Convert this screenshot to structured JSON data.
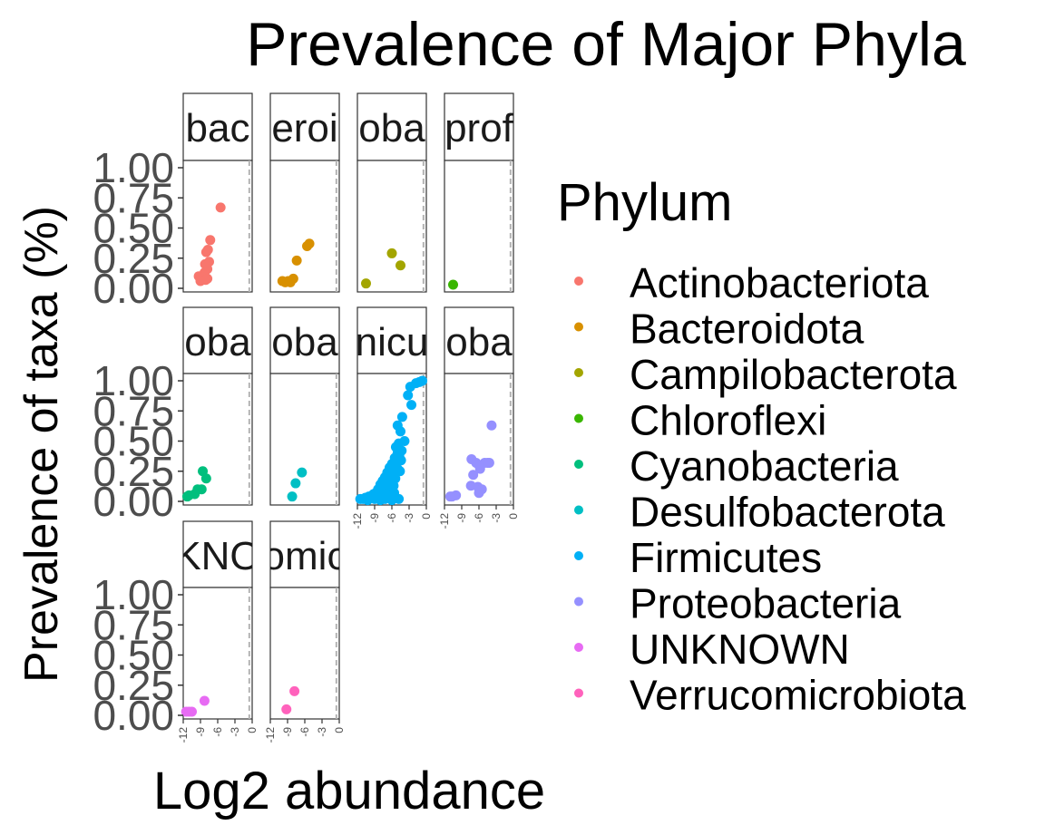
{
  "chart_data": {
    "type": "scatter",
    "title": "Prevalence of Major Phyla",
    "xlabel": "Log2 abundance",
    "ylabel": "Prevalence of taxa (%)",
    "xlim": [
      -12,
      0
    ],
    "ylim": [
      0,
      1
    ],
    "x_ticks": [
      "-12",
      "-9",
      "-6",
      "-3",
      "0"
    ],
    "y_ticks": [
      "0.00",
      "0.25",
      "0.50",
      "0.75",
      "1.00"
    ],
    "reference_line_x": -0.5,
    "legend": {
      "title": "Phylum",
      "position": "right"
    },
    "grid": false,
    "facets": [
      {
        "strip": "bac",
        "name": "Actinobacteriota",
        "color": "#F8766D",
        "points": [
          [
            -5.5,
            0.67
          ],
          [
            -7.3,
            0.4
          ],
          [
            -7.7,
            0.32
          ],
          [
            -8.0,
            0.3
          ],
          [
            -7.5,
            0.22
          ],
          [
            -8.2,
            0.2
          ],
          [
            -7.8,
            0.16
          ],
          [
            -8.3,
            0.13
          ],
          [
            -9.3,
            0.1
          ],
          [
            -8.6,
            0.09
          ],
          [
            -7.8,
            0.08
          ],
          [
            -8.1,
            0.07
          ],
          [
            -9.0,
            0.06
          ]
        ]
      },
      {
        "strip": "eroi",
        "name": "Bacteroidota",
        "color": "#D89000",
        "points": [
          [
            -5.2,
            0.37
          ],
          [
            -5.6,
            0.35
          ],
          [
            -7.4,
            0.23
          ],
          [
            -8.0,
            0.08
          ],
          [
            -8.9,
            0.06
          ],
          [
            -9.9,
            0.06
          ],
          [
            -9.4,
            0.05
          ],
          [
            -8.5,
            0.05
          ]
        ]
      },
      {
        "strip": "oba",
        "name": "Campilobacterota",
        "color": "#A3A500",
        "points": [
          [
            -6.0,
            0.29
          ],
          [
            -4.5,
            0.19
          ],
          [
            -10.5,
            0.04
          ]
        ]
      },
      {
        "strip": "prof",
        "name": "Chloroflexi",
        "color": "#39B600",
        "points": [
          [
            -10.5,
            0.03
          ]
        ]
      },
      {
        "strip": "oba",
        "name": "Cyanobacteria",
        "color": "#00BF7D",
        "points": [
          [
            -8.6,
            0.25
          ],
          [
            -8.0,
            0.19
          ],
          [
            -8.8,
            0.1
          ],
          [
            -9.5,
            0.1
          ],
          [
            -10.0,
            0.06
          ],
          [
            -11.3,
            0.04
          ],
          [
            -11.0,
            0.05
          ]
        ]
      },
      {
        "strip": "oba",
        "name": "Desulfobacterota",
        "color": "#00BFC4",
        "points": [
          [
            -6.5,
            0.24
          ],
          [
            -7.6,
            0.15
          ],
          [
            -8.2,
            0.04
          ]
        ]
      },
      {
        "strip": "nicu",
        "name": "Firmicutes",
        "color": "#00B0F6",
        "points": [
          [
            -0.7,
            1.0
          ],
          [
            -1.2,
            0.99
          ],
          [
            -1.8,
            0.98
          ],
          [
            -2.8,
            0.95
          ],
          [
            -3.2,
            0.88
          ],
          [
            -2.6,
            0.8
          ],
          [
            -4.2,
            0.7
          ],
          [
            -5.0,
            0.63
          ],
          [
            -4.5,
            0.58
          ],
          [
            -3.8,
            0.5
          ],
          [
            -4.8,
            0.48
          ],
          [
            -5.3,
            0.45
          ],
          [
            -4.3,
            0.42
          ],
          [
            -5.0,
            0.4
          ],
          [
            -4.7,
            0.37
          ],
          [
            -5.5,
            0.36
          ],
          [
            -4.4,
            0.34
          ],
          [
            -5.2,
            0.33
          ],
          [
            -6.0,
            0.31
          ],
          [
            -5.6,
            0.3
          ],
          [
            -6.4,
            0.28
          ],
          [
            -5.0,
            0.27
          ],
          [
            -4.6,
            0.25
          ],
          [
            -6.8,
            0.24
          ],
          [
            -5.9,
            0.23
          ],
          [
            -6.3,
            0.21
          ],
          [
            -7.2,
            0.2
          ],
          [
            -5.4,
            0.19
          ],
          [
            -6.6,
            0.18
          ],
          [
            -7.6,
            0.17
          ],
          [
            -6.1,
            0.16
          ],
          [
            -7.0,
            0.15
          ],
          [
            -8.0,
            0.14
          ],
          [
            -5.7,
            0.13
          ],
          [
            -6.8,
            0.12
          ],
          [
            -7.4,
            0.11
          ],
          [
            -8.4,
            0.1
          ],
          [
            -6.2,
            0.09
          ],
          [
            -7.8,
            0.08
          ],
          [
            -8.8,
            0.07
          ],
          [
            -5.6,
            0.07
          ],
          [
            -7.0,
            0.06
          ],
          [
            -9.2,
            0.06
          ],
          [
            -6.5,
            0.05
          ],
          [
            -8.2,
            0.05
          ],
          [
            -10.0,
            0.04
          ],
          [
            -5.8,
            0.04
          ],
          [
            -7.6,
            0.04
          ],
          [
            -9.6,
            0.03
          ],
          [
            -10.6,
            0.03
          ],
          [
            -6.2,
            0.03
          ],
          [
            -8.6,
            0.03
          ],
          [
            -11.0,
            0.02
          ],
          [
            -4.8,
            0.02
          ],
          [
            -7.2,
            0.02
          ],
          [
            -9.0,
            0.02
          ],
          [
            -11.5,
            0.02
          ],
          [
            -6.0,
            0.01
          ],
          [
            -8.0,
            0.01
          ],
          [
            -10.2,
            0.01
          ]
        ]
      },
      {
        "strip": "oba",
        "name": "Proteobacteria",
        "color": "#9590FF",
        "points": [
          [
            -3.8,
            0.63
          ],
          [
            -7.3,
            0.35
          ],
          [
            -6.5,
            0.32
          ],
          [
            -4.5,
            0.32
          ],
          [
            -5.0,
            0.32
          ],
          [
            -4.2,
            0.32
          ],
          [
            -6.0,
            0.3
          ],
          [
            -5.8,
            0.27
          ],
          [
            -7.0,
            0.22
          ],
          [
            -7.4,
            0.13
          ],
          [
            -6.2,
            0.12
          ],
          [
            -5.5,
            0.1
          ],
          [
            -6.0,
            0.07
          ],
          [
            -10.0,
            0.05
          ],
          [
            -10.7,
            0.04
          ],
          [
            -11.0,
            0.04
          ]
        ]
      },
      {
        "strip": "KNO",
        "name": "UNKNOWN",
        "color": "#E76BF3",
        "points": [
          [
            -8.3,
            0.12
          ],
          [
            -10.5,
            0.03
          ],
          [
            -11.0,
            0.03
          ],
          [
            -11.5,
            0.03
          ]
        ]
      },
      {
        "strip": "omic",
        "name": "Verrucomicrobiota",
        "color": "#FF62BC",
        "points": [
          [
            -7.8,
            0.2
          ],
          [
            -9.2,
            0.05
          ]
        ]
      }
    ]
  }
}
